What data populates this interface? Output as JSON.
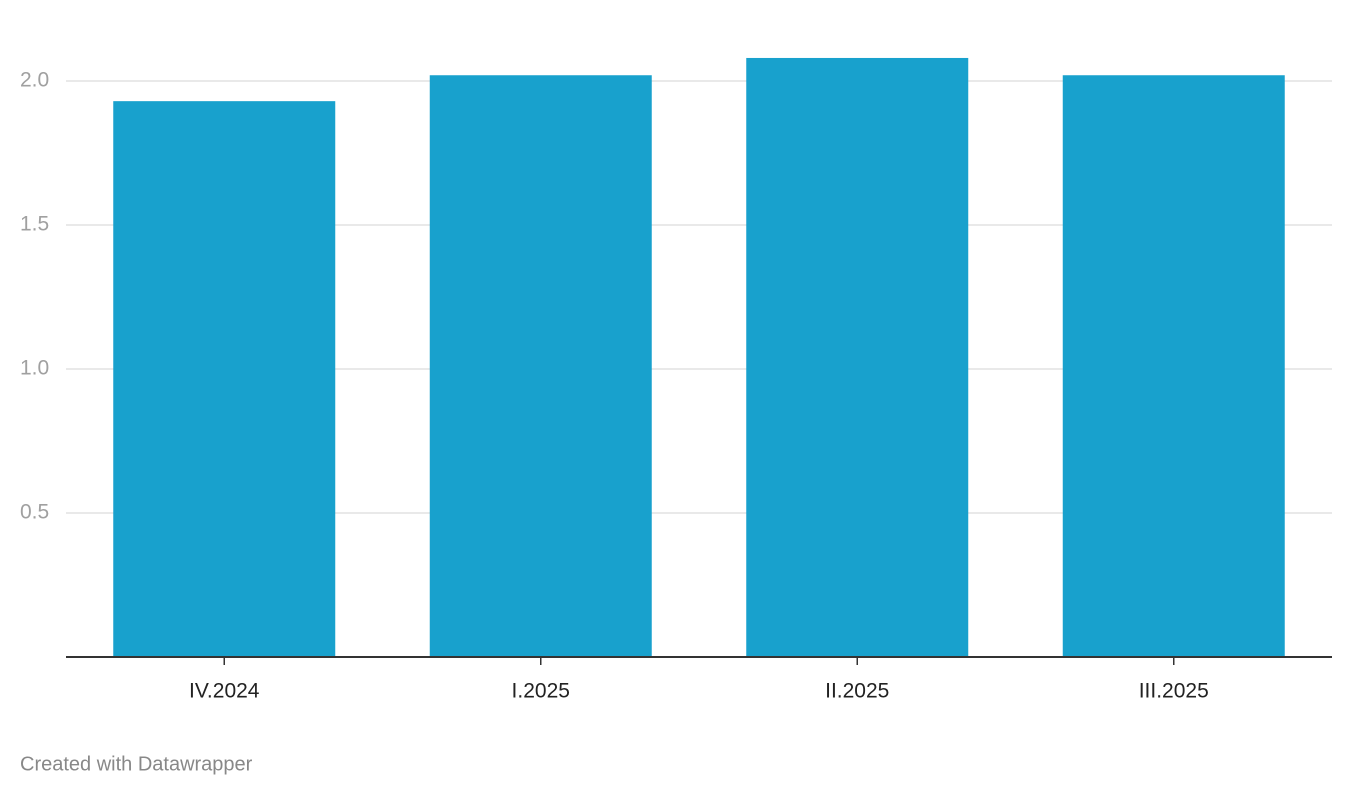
{
  "chart_data": {
    "type": "bar",
    "categories": [
      "IV.2024",
      "I.2025",
      "II.2025",
      "III.2025"
    ],
    "values": [
      1.93,
      2.02,
      2.08,
      2.02
    ],
    "color": "#18a1cd",
    "ylim": [
      0,
      2.2
    ],
    "yticks": [
      0.5,
      {
        "value": 1,
        "label": "1.0"
      },
      1.5,
      {
        "value": 2,
        "label": "2.0"
      }
    ],
    "grid": true,
    "footer": "Created with Datawrapper"
  }
}
